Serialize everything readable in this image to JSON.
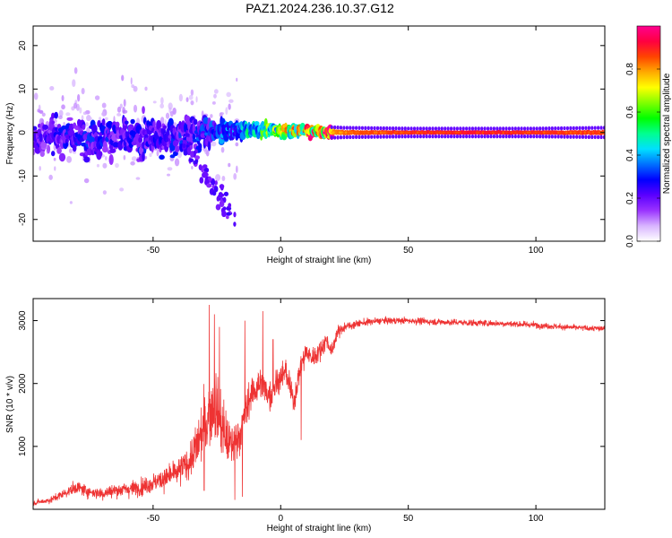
{
  "title": "PAZ1.2024.236.10.37.G12",
  "chart_data": [
    {
      "type": "heatmap",
      "xlabel": "Height of straight line (km)",
      "ylabel": "Frequency (Hz)",
      "xlim": [
        -97,
        127
      ],
      "ylim": [
        -25,
        24.5
      ],
      "x_ticks": [
        -50,
        0,
        50,
        100
      ],
      "y_ticks": [
        -20,
        -10,
        0,
        10,
        20
      ],
      "colorbar": {
        "label": "Normalized spectral amplitude",
        "range": [
          0,
          1
        ],
        "ticks": [
          0.0,
          0.2,
          0.4,
          0.6,
          0.8
        ],
        "colors": [
          "#ffffff",
          "#d8b4ff",
          "#9a33ff",
          "#5a00ff",
          "#0000ff",
          "#0070ff",
          "#00e0ff",
          "#00ff90",
          "#00ff00",
          "#80ff00",
          "#ffff00",
          "#ffaa00",
          "#ff4400",
          "#ff0040",
          "#ff0090"
        ]
      },
      "ridge": [
        {
          "x": -95,
          "freq": -1.0,
          "width": 5.5,
          "amp": 0.18
        },
        {
          "x": -85,
          "freq": -0.5,
          "width": 5.0,
          "amp": 0.22
        },
        {
          "x": -75,
          "freq": -1.5,
          "width": 5.5,
          "amp": 0.24
        },
        {
          "x": -65,
          "freq": -1.0,
          "width": 6.0,
          "amp": 0.22
        },
        {
          "x": -55,
          "freq": -1.5,
          "width": 6.5,
          "amp": 0.22
        },
        {
          "x": -45,
          "freq": -1.0,
          "width": 6.5,
          "amp": 0.22
        },
        {
          "x": -35,
          "freq": -0.5,
          "width": 5.5,
          "amp": 0.24
        },
        {
          "x": -25,
          "freq": 0.5,
          "width": 4.0,
          "amp": 0.28
        },
        {
          "x": -15,
          "freq": 0.5,
          "width": 2.5,
          "amp": 0.35
        },
        {
          "x": -5,
          "freq": 0.5,
          "width": 2.0,
          "amp": 0.5
        },
        {
          "x": 5,
          "freq": 0.5,
          "width": 2.0,
          "amp": 0.65
        },
        {
          "x": 15,
          "freq": 0.2,
          "width": 1.5,
          "amp": 0.75
        },
        {
          "x": 25,
          "freq": 0.0,
          "width": 1.2,
          "amp": 0.85
        },
        {
          "x": 50,
          "freq": 0.0,
          "width": 1.0,
          "amp": 0.9
        },
        {
          "x": 75,
          "freq": 0.0,
          "width": 1.0,
          "amp": 0.92
        },
        {
          "x": 100,
          "freq": 0.0,
          "width": 1.0,
          "amp": 0.9
        },
        {
          "x": 127,
          "freq": 0.0,
          "width": 1.2,
          "amp": 0.88
        }
      ]
    },
    {
      "type": "line",
      "xlabel": "Height of straight line (km)",
      "ylabel": "SNR (10 * v/v)",
      "xlim": [
        -97,
        127
      ],
      "ylim": [
        0,
        3350
      ],
      "x_ticks": [
        -50,
        0,
        50,
        100
      ],
      "y_ticks": [
        1000,
        2000,
        3000
      ],
      "color": "#ee3333",
      "series": [
        {
          "x": [
            -97,
            -90,
            -80,
            -75,
            -70,
            -65,
            -60,
            -55,
            -50,
            -45,
            -40,
            -35,
            -32,
            -30,
            -28,
            -26,
            -24,
            -22,
            -20,
            -18,
            -16,
            -14,
            -12,
            -10,
            -8,
            -6,
            -4,
            -2,
            0,
            2,
            5,
            8,
            10,
            12,
            15,
            18,
            20,
            22,
            25,
            30,
            35,
            40,
            50,
            60,
            70,
            80,
            90,
            100,
            110,
            120,
            127
          ],
          "y": [
            100,
            150,
            350,
            280,
            250,
            300,
            320,
            350,
            420,
            500,
            600,
            800,
            1100,
            1300,
            1500,
            1700,
            1400,
            1200,
            1000,
            1100,
            1200,
            1500,
            1800,
            1900,
            2000,
            1900,
            1800,
            2000,
            2100,
            2200,
            1700,
            2300,
            2500,
            2400,
            2500,
            2700,
            2500,
            2800,
            2900,
            2950,
            2980,
            3000,
            3000,
            2980,
            2970,
            2960,
            2950,
            2930,
            2900,
            2880,
            2870
          ],
          "noise": [
            60,
            80,
            150,
            150,
            150,
            170,
            190,
            200,
            230,
            280,
            330,
            420,
            650,
            800,
            850,
            900,
            800,
            700,
            600,
            500,
            450,
            450,
            450,
            400,
            400,
            380,
            360,
            340,
            330,
            320,
            300,
            300,
            280,
            260,
            240,
            200,
            180,
            150,
            120,
            90,
            90,
            80,
            80,
            80,
            80,
            80,
            80,
            80,
            70,
            70,
            70
          ],
          "spikes": [
            [
              -28,
              3250
            ],
            [
              -26,
              3100
            ],
            [
              -24,
              2900
            ],
            [
              -14,
              3000
            ],
            [
              -7,
              3150
            ],
            [
              -3,
              2700
            ],
            [
              8,
              1100
            ],
            [
              -18,
              150
            ],
            [
              -15,
              200
            ],
            [
              -30,
              300
            ]
          ]
        }
      ]
    }
  ]
}
